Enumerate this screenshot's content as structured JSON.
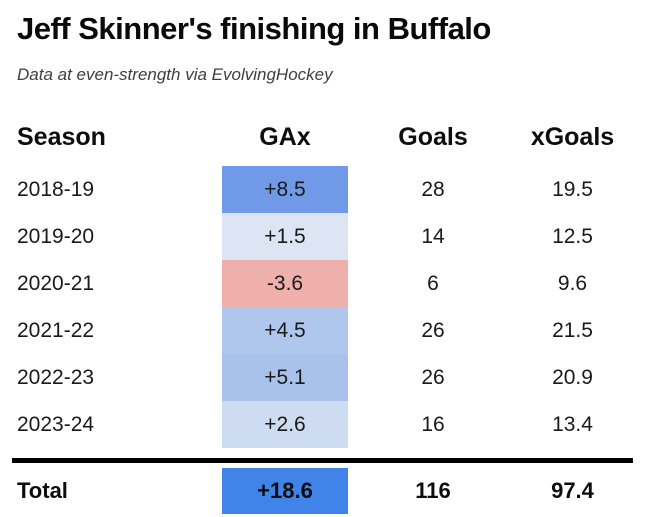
{
  "header": {
    "title": "Jeff Skinner's finishing in Buffalo",
    "subtitle": "Data at even-strength via EvolvingHockey"
  },
  "chart_data": {
    "type": "table",
    "title": "Jeff Skinner's finishing in Buffalo",
    "subtitle": "Data at even-strength via EvolvingHockey",
    "columns": [
      "Season",
      "GAx",
      "Goals",
      "xGoals"
    ],
    "heatmap_note": "GAx column cells are shaded blue for positive values (darker = higher) and red for negative values",
    "rows": [
      {
        "season": "2018-19",
        "gax": "+8.5",
        "gax_value": 8.5,
        "gax_color": "#709AE8",
        "goals": 28,
        "xgoals": 19.5
      },
      {
        "season": "2019-20",
        "gax": "+1.5",
        "gax_value": 1.5,
        "gax_color": "#DDE4F3",
        "goals": 14,
        "xgoals": 12.5
      },
      {
        "season": "2020-21",
        "gax": "-3.6",
        "gax_value": -3.6,
        "gax_color": "#EFAFAA",
        "goals": 6,
        "xgoals": 9.6
      },
      {
        "season": "2021-22",
        "gax": "+4.5",
        "gax_value": 4.5,
        "gax_color": "#AFC7ED",
        "goals": 26,
        "xgoals": 21.5
      },
      {
        "season": "2022-23",
        "gax": "+5.1",
        "gax_value": 5.1,
        "gax_color": "#A9C2EC",
        "goals": 26,
        "xgoals": 20.9
      },
      {
        "season": "2023-24",
        "gax": "+2.6",
        "gax_value": 2.6,
        "gax_color": "#CEDCF2",
        "goals": 16,
        "xgoals": 13.4
      }
    ],
    "total": {
      "label": "Total",
      "gax": "+18.6",
      "gax_value": 18.6,
      "gax_color": "#4083E9",
      "goals": 116,
      "xgoals": 97.4
    }
  }
}
